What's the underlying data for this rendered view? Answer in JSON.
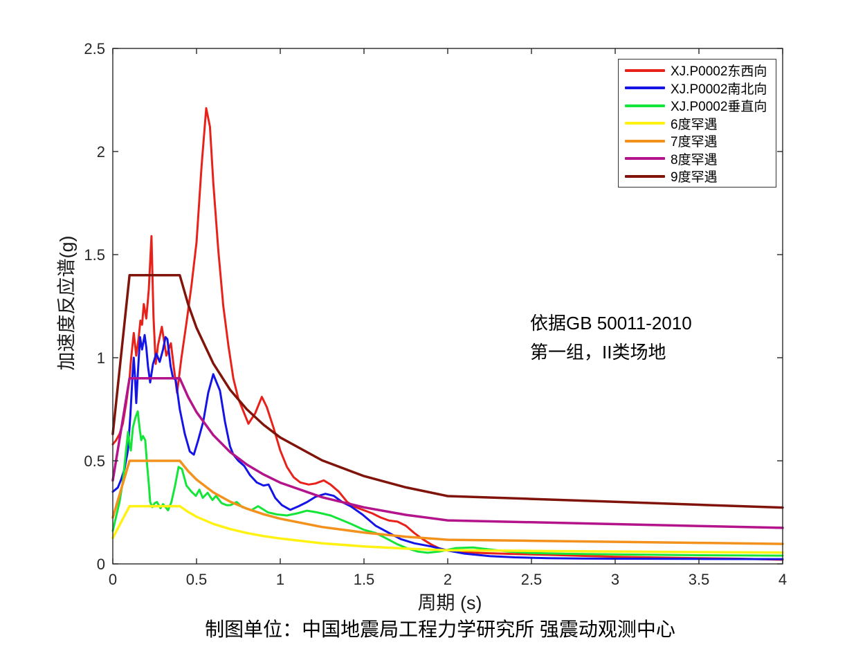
{
  "chart_data": {
    "type": "line",
    "xlabel": "周期 (s)",
    "ylabel": "加速度反应谱(g)",
    "xlim": [
      0,
      4
    ],
    "ylim": [
      0,
      2.5
    ],
    "grid": false,
    "axis_color": "#262626",
    "xticks": {
      "values": [
        0,
        0.5,
        1,
        1.5,
        2,
        2.5,
        3,
        3.5,
        4
      ],
      "labels": [
        "0",
        "0.5",
        "1",
        "1.5",
        "2",
        "2.5",
        "3",
        "3.5",
        "4"
      ]
    },
    "yticks": {
      "values": [
        0,
        0.5,
        1,
        1.5,
        2,
        2.5
      ],
      "labels": [
        "0",
        "0.5",
        "1",
        "1.5",
        "2",
        "2.5"
      ]
    },
    "legend_position": "top-right",
    "annotation": {
      "line1": "依据GB 50011-2010",
      "line2": "第一组，II类场地"
    },
    "caption": "制图单位：中国地震局工程力学研究所 强震动观测中心",
    "series": [
      {
        "name": "XJ.P0002东西向",
        "color": "#e8221a",
        "width": 3,
        "points": [
          [
            0,
            0.58
          ],
          [
            0.02,
            0.6
          ],
          [
            0.04,
            0.63
          ],
          [
            0.06,
            0.68
          ],
          [
            0.08,
            0.78
          ],
          [
            0.1,
            0.9
          ],
          [
            0.11,
            1.0
          ],
          [
            0.125,
            1.12
          ],
          [
            0.14,
            1.01
          ],
          [
            0.155,
            1.1
          ],
          [
            0.165,
            1.18
          ],
          [
            0.175,
            1.16
          ],
          [
            0.185,
            1.26
          ],
          [
            0.2,
            1.19
          ],
          [
            0.215,
            1.33
          ],
          [
            0.231,
            1.59
          ],
          [
            0.243,
            1.2
          ],
          [
            0.256,
            0.97
          ],
          [
            0.27,
            1.06
          ],
          [
            0.293,
            1.15
          ],
          [
            0.32,
            1.01
          ],
          [
            0.347,
            1.07
          ],
          [
            0.365,
            0.95
          ],
          [
            0.384,
            0.83
          ],
          [
            0.41,
            1.0
          ],
          [
            0.44,
            1.17
          ],
          [
            0.47,
            1.35
          ],
          [
            0.5,
            1.56
          ],
          [
            0.53,
            1.93
          ],
          [
            0.558,
            2.21
          ],
          [
            0.58,
            2.12
          ],
          [
            0.6,
            1.85
          ],
          [
            0.63,
            1.52
          ],
          [
            0.66,
            1.25
          ],
          [
            0.69,
            1.06
          ],
          [
            0.72,
            0.9
          ],
          [
            0.75,
            0.8
          ],
          [
            0.78,
            0.74
          ],
          [
            0.81,
            0.68
          ],
          [
            0.85,
            0.73
          ],
          [
            0.89,
            0.81
          ],
          [
            0.92,
            0.76
          ],
          [
            0.96,
            0.66
          ],
          [
            1.0,
            0.55
          ],
          [
            1.04,
            0.47
          ],
          [
            1.08,
            0.42
          ],
          [
            1.12,
            0.395
          ],
          [
            1.17,
            0.385
          ],
          [
            1.21,
            0.39
          ],
          [
            1.26,
            0.405
          ],
          [
            1.3,
            0.385
          ],
          [
            1.35,
            0.35
          ],
          [
            1.4,
            0.3
          ],
          [
            1.45,
            0.275
          ],
          [
            1.5,
            0.26
          ],
          [
            1.55,
            0.245
          ],
          [
            1.6,
            0.225
          ],
          [
            1.65,
            0.21
          ],
          [
            1.7,
            0.205
          ],
          [
            1.75,
            0.185
          ],
          [
            1.8,
            0.15
          ],
          [
            1.85,
            0.12
          ],
          [
            1.9,
            0.095
          ],
          [
            1.95,
            0.075
          ],
          [
            2.0,
            0.065
          ],
          [
            2.1,
            0.057
          ],
          [
            2.2,
            0.053
          ],
          [
            2.4,
            0.048
          ],
          [
            2.6,
            0.044
          ],
          [
            2.8,
            0.039
          ],
          [
            3.0,
            0.035
          ],
          [
            3.25,
            0.031
          ],
          [
            3.5,
            0.028
          ],
          [
            3.75,
            0.025
          ],
          [
            4.0,
            0.02
          ]
        ]
      },
      {
        "name": "XJ.P0002南北向",
        "color": "#1414e6",
        "width": 3,
        "points": [
          [
            0,
            0.35
          ],
          [
            0.03,
            0.37
          ],
          [
            0.05,
            0.41
          ],
          [
            0.07,
            0.46
          ],
          [
            0.09,
            0.55
          ],
          [
            0.105,
            0.72
          ],
          [
            0.118,
            0.92
          ],
          [
            0.125,
            1.0
          ],
          [
            0.133,
            0.9
          ],
          [
            0.14,
            0.78
          ],
          [
            0.15,
            0.93
          ],
          [
            0.163,
            1.1
          ],
          [
            0.175,
            1.04
          ],
          [
            0.19,
            1.11
          ],
          [
            0.2,
            1.05
          ],
          [
            0.21,
            0.96
          ],
          [
            0.223,
            0.88
          ],
          [
            0.24,
            0.97
          ],
          [
            0.26,
            1.02
          ],
          [
            0.28,
            0.98
          ],
          [
            0.3,
            1.04
          ],
          [
            0.315,
            1.1
          ],
          [
            0.326,
            1.09
          ],
          [
            0.345,
            0.96
          ],
          [
            0.36,
            0.9
          ],
          [
            0.375,
            0.895
          ],
          [
            0.4,
            0.75
          ],
          [
            0.43,
            0.63
          ],
          [
            0.46,
            0.545
          ],
          [
            0.484,
            0.53
          ],
          [
            0.51,
            0.6
          ],
          [
            0.54,
            0.69
          ],
          [
            0.57,
            0.83
          ],
          [
            0.6,
            0.92
          ],
          [
            0.62,
            0.88
          ],
          [
            0.64,
            0.84
          ],
          [
            0.67,
            0.69
          ],
          [
            0.7,
            0.57
          ],
          [
            0.72,
            0.53
          ],
          [
            0.75,
            0.5
          ],
          [
            0.785,
            0.475
          ],
          [
            0.82,
            0.43
          ],
          [
            0.86,
            0.395
          ],
          [
            0.9,
            0.38
          ],
          [
            0.93,
            0.385
          ],
          [
            0.97,
            0.32
          ],
          [
            1.01,
            0.285
          ],
          [
            1.06,
            0.262
          ],
          [
            1.11,
            0.28
          ],
          [
            1.16,
            0.3
          ],
          [
            1.21,
            0.325
          ],
          [
            1.27,
            0.34
          ],
          [
            1.32,
            0.33
          ],
          [
            1.37,
            0.3
          ],
          [
            1.42,
            0.28
          ],
          [
            1.49,
            0.24
          ],
          [
            1.57,
            0.185
          ],
          [
            1.65,
            0.15
          ],
          [
            1.72,
            0.12
          ],
          [
            1.8,
            0.1
          ],
          [
            1.9,
            0.085
          ],
          [
            2.0,
            0.065
          ],
          [
            2.1,
            0.05
          ],
          [
            2.25,
            0.038
          ],
          [
            2.4,
            0.032
          ],
          [
            2.6,
            0.028
          ],
          [
            2.8,
            0.026
          ],
          [
            3.0,
            0.025
          ],
          [
            3.5,
            0.024
          ],
          [
            4.0,
            0.023
          ]
        ]
      },
      {
        "name": "XJ.P0002垂直向",
        "color": "#14e639",
        "width": 3,
        "points": [
          [
            0,
            0.16
          ],
          [
            0.02,
            0.23
          ],
          [
            0.04,
            0.3
          ],
          [
            0.06,
            0.4
          ],
          [
            0.075,
            0.52
          ],
          [
            0.091,
            0.64
          ],
          [
            0.1,
            0.58
          ],
          [
            0.108,
            0.55
          ],
          [
            0.12,
            0.66
          ],
          [
            0.135,
            0.71
          ],
          [
            0.149,
            0.74
          ],
          [
            0.16,
            0.66
          ],
          [
            0.17,
            0.6
          ],
          [
            0.18,
            0.62
          ],
          [
            0.194,
            0.6
          ],
          [
            0.205,
            0.48
          ],
          [
            0.215,
            0.39
          ],
          [
            0.223,
            0.3
          ],
          [
            0.236,
            0.275
          ],
          [
            0.25,
            0.295
          ],
          [
            0.264,
            0.3
          ],
          [
            0.285,
            0.27
          ],
          [
            0.3,
            0.29
          ],
          [
            0.315,
            0.275
          ],
          [
            0.33,
            0.26
          ],
          [
            0.35,
            0.3
          ],
          [
            0.372,
            0.38
          ],
          [
            0.393,
            0.47
          ],
          [
            0.413,
            0.46
          ],
          [
            0.44,
            0.38
          ],
          [
            0.47,
            0.35
          ],
          [
            0.496,
            0.33
          ],
          [
            0.517,
            0.36
          ],
          [
            0.537,
            0.32
          ],
          [
            0.566,
            0.345
          ],
          [
            0.595,
            0.31
          ],
          [
            0.616,
            0.33
          ],
          [
            0.649,
            0.295
          ],
          [
            0.68,
            0.285
          ],
          [
            0.702,
            0.285
          ],
          [
            0.74,
            0.3
          ],
          [
            0.773,
            0.275
          ],
          [
            0.826,
            0.26
          ],
          [
            0.868,
            0.28
          ],
          [
            0.926,
            0.25
          ],
          [
            0.98,
            0.24
          ],
          [
            1.04,
            0.235
          ],
          [
            1.1,
            0.245
          ],
          [
            1.16,
            0.258
          ],
          [
            1.22,
            0.25
          ],
          [
            1.3,
            0.235
          ],
          [
            1.36,
            0.215
          ],
          [
            1.42,
            0.195
          ],
          [
            1.5,
            0.165
          ],
          [
            1.57,
            0.15
          ],
          [
            1.63,
            0.125
          ],
          [
            1.7,
            0.095
          ],
          [
            1.76,
            0.075
          ],
          [
            1.82,
            0.06
          ],
          [
            1.88,
            0.054
          ],
          [
            1.95,
            0.06
          ],
          [
            2.05,
            0.077
          ],
          [
            2.15,
            0.08
          ],
          [
            2.25,
            0.07
          ],
          [
            2.36,
            0.06
          ],
          [
            2.5,
            0.053
          ],
          [
            2.7,
            0.049
          ],
          [
            3.0,
            0.046
          ],
          [
            3.5,
            0.042
          ],
          [
            4.0,
            0.04
          ]
        ]
      },
      {
        "name": "6度罕遇",
        "color": "#fff212",
        "width": 3.5,
        "points": [
          [
            0,
            0.126
          ],
          [
            0.1,
            0.28
          ],
          [
            0.4,
            0.28
          ],
          [
            0.45,
            0.252
          ],
          [
            0.5,
            0.229
          ],
          [
            0.6,
            0.194
          ],
          [
            0.7,
            0.169
          ],
          [
            0.8,
            0.15
          ],
          [
            0.9,
            0.135
          ],
          [
            1.0,
            0.123
          ],
          [
            1.25,
            0.1
          ],
          [
            1.5,
            0.085
          ],
          [
            1.75,
            0.074
          ],
          [
            2.0,
            0.066
          ],
          [
            2.5,
            0.063
          ],
          [
            3.0,
            0.06
          ],
          [
            3.5,
            0.057
          ],
          [
            4.0,
            0.055
          ]
        ]
      },
      {
        "name": "7度罕遇",
        "color": "#f2921d",
        "width": 3.5,
        "points": [
          [
            0,
            0.225
          ],
          [
            0.1,
            0.5
          ],
          [
            0.4,
            0.5
          ],
          [
            0.45,
            0.45
          ],
          [
            0.5,
            0.409
          ],
          [
            0.6,
            0.347
          ],
          [
            0.7,
            0.302
          ],
          [
            0.8,
            0.268
          ],
          [
            0.9,
            0.241
          ],
          [
            1.0,
            0.219
          ],
          [
            1.25,
            0.179
          ],
          [
            1.5,
            0.152
          ],
          [
            1.75,
            0.132
          ],
          [
            2.0,
            0.117
          ],
          [
            2.5,
            0.112
          ],
          [
            3.0,
            0.107
          ],
          [
            3.5,
            0.102
          ],
          [
            4.0,
            0.097
          ]
        ]
      },
      {
        "name": "8度罕遇",
        "color": "#b3148c",
        "width": 3.5,
        "points": [
          [
            0,
            0.405
          ],
          [
            0.1,
            0.9
          ],
          [
            0.4,
            0.9
          ],
          [
            0.45,
            0.809
          ],
          [
            0.5,
            0.736
          ],
          [
            0.6,
            0.625
          ],
          [
            0.7,
            0.543
          ],
          [
            0.8,
            0.482
          ],
          [
            0.9,
            0.434
          ],
          [
            1.0,
            0.394
          ],
          [
            1.25,
            0.323
          ],
          [
            1.5,
            0.274
          ],
          [
            1.75,
            0.238
          ],
          [
            2.0,
            0.211
          ],
          [
            2.5,
            0.202
          ],
          [
            3.0,
            0.193
          ],
          [
            3.5,
            0.184
          ],
          [
            4.0,
            0.175
          ]
        ]
      },
      {
        "name": "9度罕遇",
        "color": "#80140a",
        "width": 3.5,
        "points": [
          [
            0,
            0.63
          ],
          [
            0.1,
            1.4
          ],
          [
            0.4,
            1.4
          ],
          [
            0.45,
            1.259
          ],
          [
            0.5,
            1.145
          ],
          [
            0.6,
            0.972
          ],
          [
            0.7,
            0.845
          ],
          [
            0.8,
            0.75
          ],
          [
            0.9,
            0.675
          ],
          [
            1.0,
            0.613
          ],
          [
            1.25,
            0.502
          ],
          [
            1.5,
            0.426
          ],
          [
            1.75,
            0.371
          ],
          [
            2.0,
            0.329
          ],
          [
            2.5,
            0.315
          ],
          [
            3.0,
            0.301
          ],
          [
            3.5,
            0.287
          ],
          [
            4.0,
            0.273
          ]
        ]
      }
    ]
  }
}
